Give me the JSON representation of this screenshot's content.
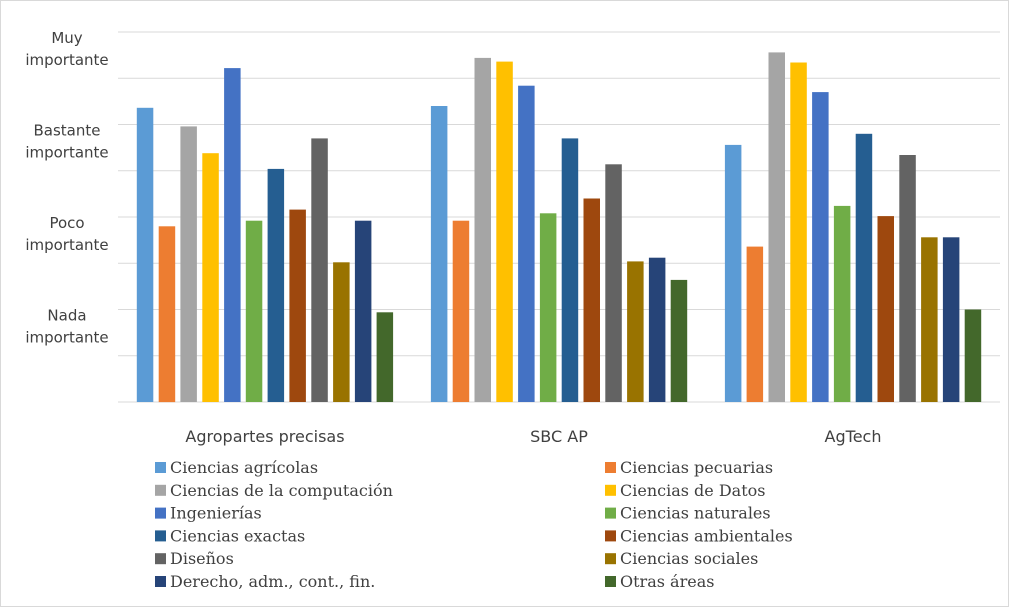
{
  "chart_data": {
    "type": "bar",
    "categories": [
      "Agropartes precisas",
      "SBC AP",
      "AgTech"
    ],
    "y_axis": {
      "labels": [
        [
          "Muy",
          "importante"
        ],
        [
          "Bastante",
          "importante"
        ],
        [
          "Poco",
          "importante"
        ],
        [
          "Nada",
          "importante"
        ]
      ],
      "label_values": [
        4,
        3,
        2,
        1
      ],
      "ylim": [
        0,
        4
      ],
      "grid": true
    },
    "legend_position": "bottom",
    "series": [
      {
        "name": "Ciencias agrícolas",
        "color": "#5b9bd5",
        "values": [
          3.18,
          3.2,
          2.78
        ]
      },
      {
        "name": "Ciencias pecuarias",
        "color": "#ed7d31",
        "values": [
          1.9,
          1.96,
          1.68
        ]
      },
      {
        "name": "Ciencias de la computación",
        "color": "#a5a5a5",
        "values": [
          2.98,
          3.72,
          3.78
        ]
      },
      {
        "name": "Ciencias de Datos",
        "color": "#ffc000",
        "values": [
          2.69,
          3.68,
          3.67
        ]
      },
      {
        "name": "Ingenierías",
        "color": "#4472c4",
        "values": [
          3.61,
          3.42,
          3.35
        ]
      },
      {
        "name": "Ciencias naturales",
        "color": "#70ad47",
        "values": [
          1.96,
          2.04,
          2.12
        ]
      },
      {
        "name": "Ciencias exactas",
        "color": "#255e91",
        "values": [
          2.52,
          2.85,
          2.9
        ]
      },
      {
        "name": "Ciencias ambientales",
        "color": "#9e480e",
        "values": [
          2.08,
          2.2,
          2.01
        ]
      },
      {
        "name": "Diseños",
        "color": "#636363",
        "values": [
          2.85,
          2.57,
          2.67
        ]
      },
      {
        "name": "Ciencias sociales",
        "color": "#997300",
        "values": [
          1.51,
          1.52,
          1.78
        ]
      },
      {
        "name": "Derecho, adm., cont., fin.",
        "color": "#264478",
        "values": [
          1.96,
          1.56,
          1.78
        ]
      },
      {
        "name": "Otras áreas",
        "color": "#43682b",
        "values": [
          0.97,
          1.32,
          1.0
        ]
      }
    ]
  }
}
